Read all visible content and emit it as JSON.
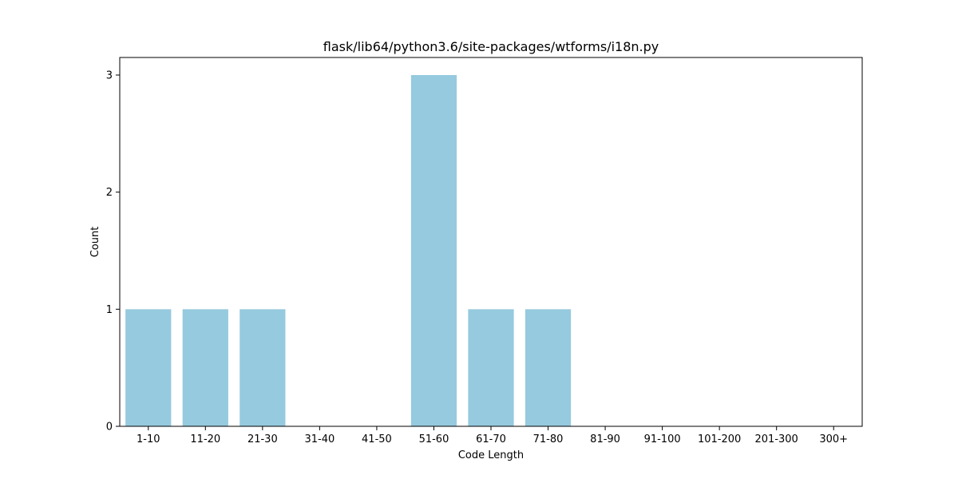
{
  "chart_data": {
    "type": "bar",
    "title": "flask/lib64/python3.6/site-packages/wtforms/i18n.py",
    "xlabel": "Code Length",
    "ylabel": "Count",
    "categories": [
      "1-10",
      "11-20",
      "21-30",
      "31-40",
      "41-50",
      "51-60",
      "61-70",
      "71-80",
      "81-90",
      "91-100",
      "101-200",
      "201-300",
      "300+"
    ],
    "values": [
      1,
      1,
      1,
      0,
      0,
      3,
      1,
      1,
      0,
      0,
      0,
      0,
      0
    ],
    "ylim": [
      0,
      3.15
    ],
    "yticks": [
      0,
      1,
      2,
      3
    ],
    "bar_color": "#96cade",
    "grid": false,
    "legend": "none"
  }
}
